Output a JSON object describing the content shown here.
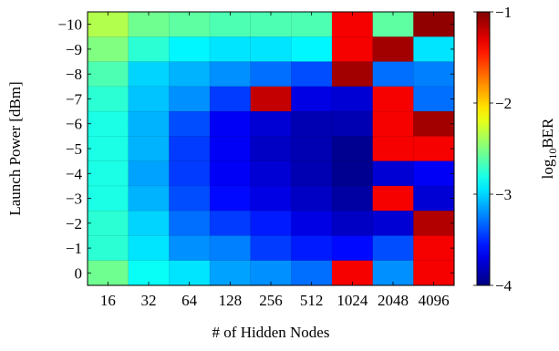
{
  "chart_data": {
    "type": "heatmap",
    "title": "",
    "xlabel": "# of Hidden Nodes",
    "ylabel": "Launch Power [dBm]",
    "x_categories": [
      "16",
      "32",
      "64",
      "128",
      "256",
      "512",
      "1024",
      "2048",
      "4096"
    ],
    "y_categories": [
      "−10",
      "−9",
      "−8",
      "−7",
      "−6",
      "−5",
      "−4",
      "−3",
      "−2",
      "−1",
      "0"
    ],
    "values": [
      [
        -2.35,
        -2.55,
        -2.6,
        -2.65,
        -2.65,
        -2.65,
        -1.35,
        -2.6,
        -1.05
      ],
      [
        -2.5,
        -2.75,
        -2.9,
        -2.95,
        -2.95,
        -2.9,
        -1.35,
        -1.1,
        -2.95
      ],
      [
        -2.65,
        -3.0,
        -3.1,
        -3.2,
        -3.3,
        -3.4,
        -1.1,
        -3.3,
        -3.25
      ],
      [
        -2.75,
        -3.05,
        -3.2,
        -3.45,
        -1.2,
        -3.7,
        -3.75,
        -1.35,
        -3.3
      ],
      [
        -2.8,
        -3.1,
        -3.4,
        -3.65,
        -3.75,
        -3.85,
        -3.85,
        -1.35,
        -1.1
      ],
      [
        -2.8,
        -3.1,
        -3.45,
        -3.65,
        -3.8,
        -3.85,
        -3.95,
        -1.35,
        -1.35
      ],
      [
        -2.8,
        -3.15,
        -3.45,
        -3.65,
        -3.75,
        -3.85,
        -3.95,
        -3.75,
        -3.65
      ],
      [
        -2.8,
        -3.1,
        -3.4,
        -3.6,
        -3.7,
        -3.8,
        -3.9,
        -1.35,
        -3.75
      ],
      [
        -2.75,
        -3.0,
        -3.3,
        -3.45,
        -3.55,
        -3.7,
        -3.8,
        -3.75,
        -1.15
      ],
      [
        -2.75,
        -2.95,
        -3.2,
        -3.25,
        -3.45,
        -3.55,
        -3.6,
        -3.4,
        -1.35
      ],
      [
        -2.55,
        -2.85,
        -2.95,
        -3.15,
        -3.2,
        -3.3,
        -1.35,
        -3.2,
        -1.35
      ]
    ],
    "colorbar": {
      "label_main": "log",
      "label_sub": "10",
      "label_tail": "BER",
      "range": [
        -4,
        -1
      ],
      "ticks": [
        {
          "value": -1,
          "label": "−1"
        },
        {
          "value": -2,
          "label": "−2"
        },
        {
          "value": -3,
          "label": "−3"
        },
        {
          "value": -4,
          "label": "−4"
        }
      ],
      "colormap": "jet"
    },
    "grid": true,
    "legend": "none"
  }
}
